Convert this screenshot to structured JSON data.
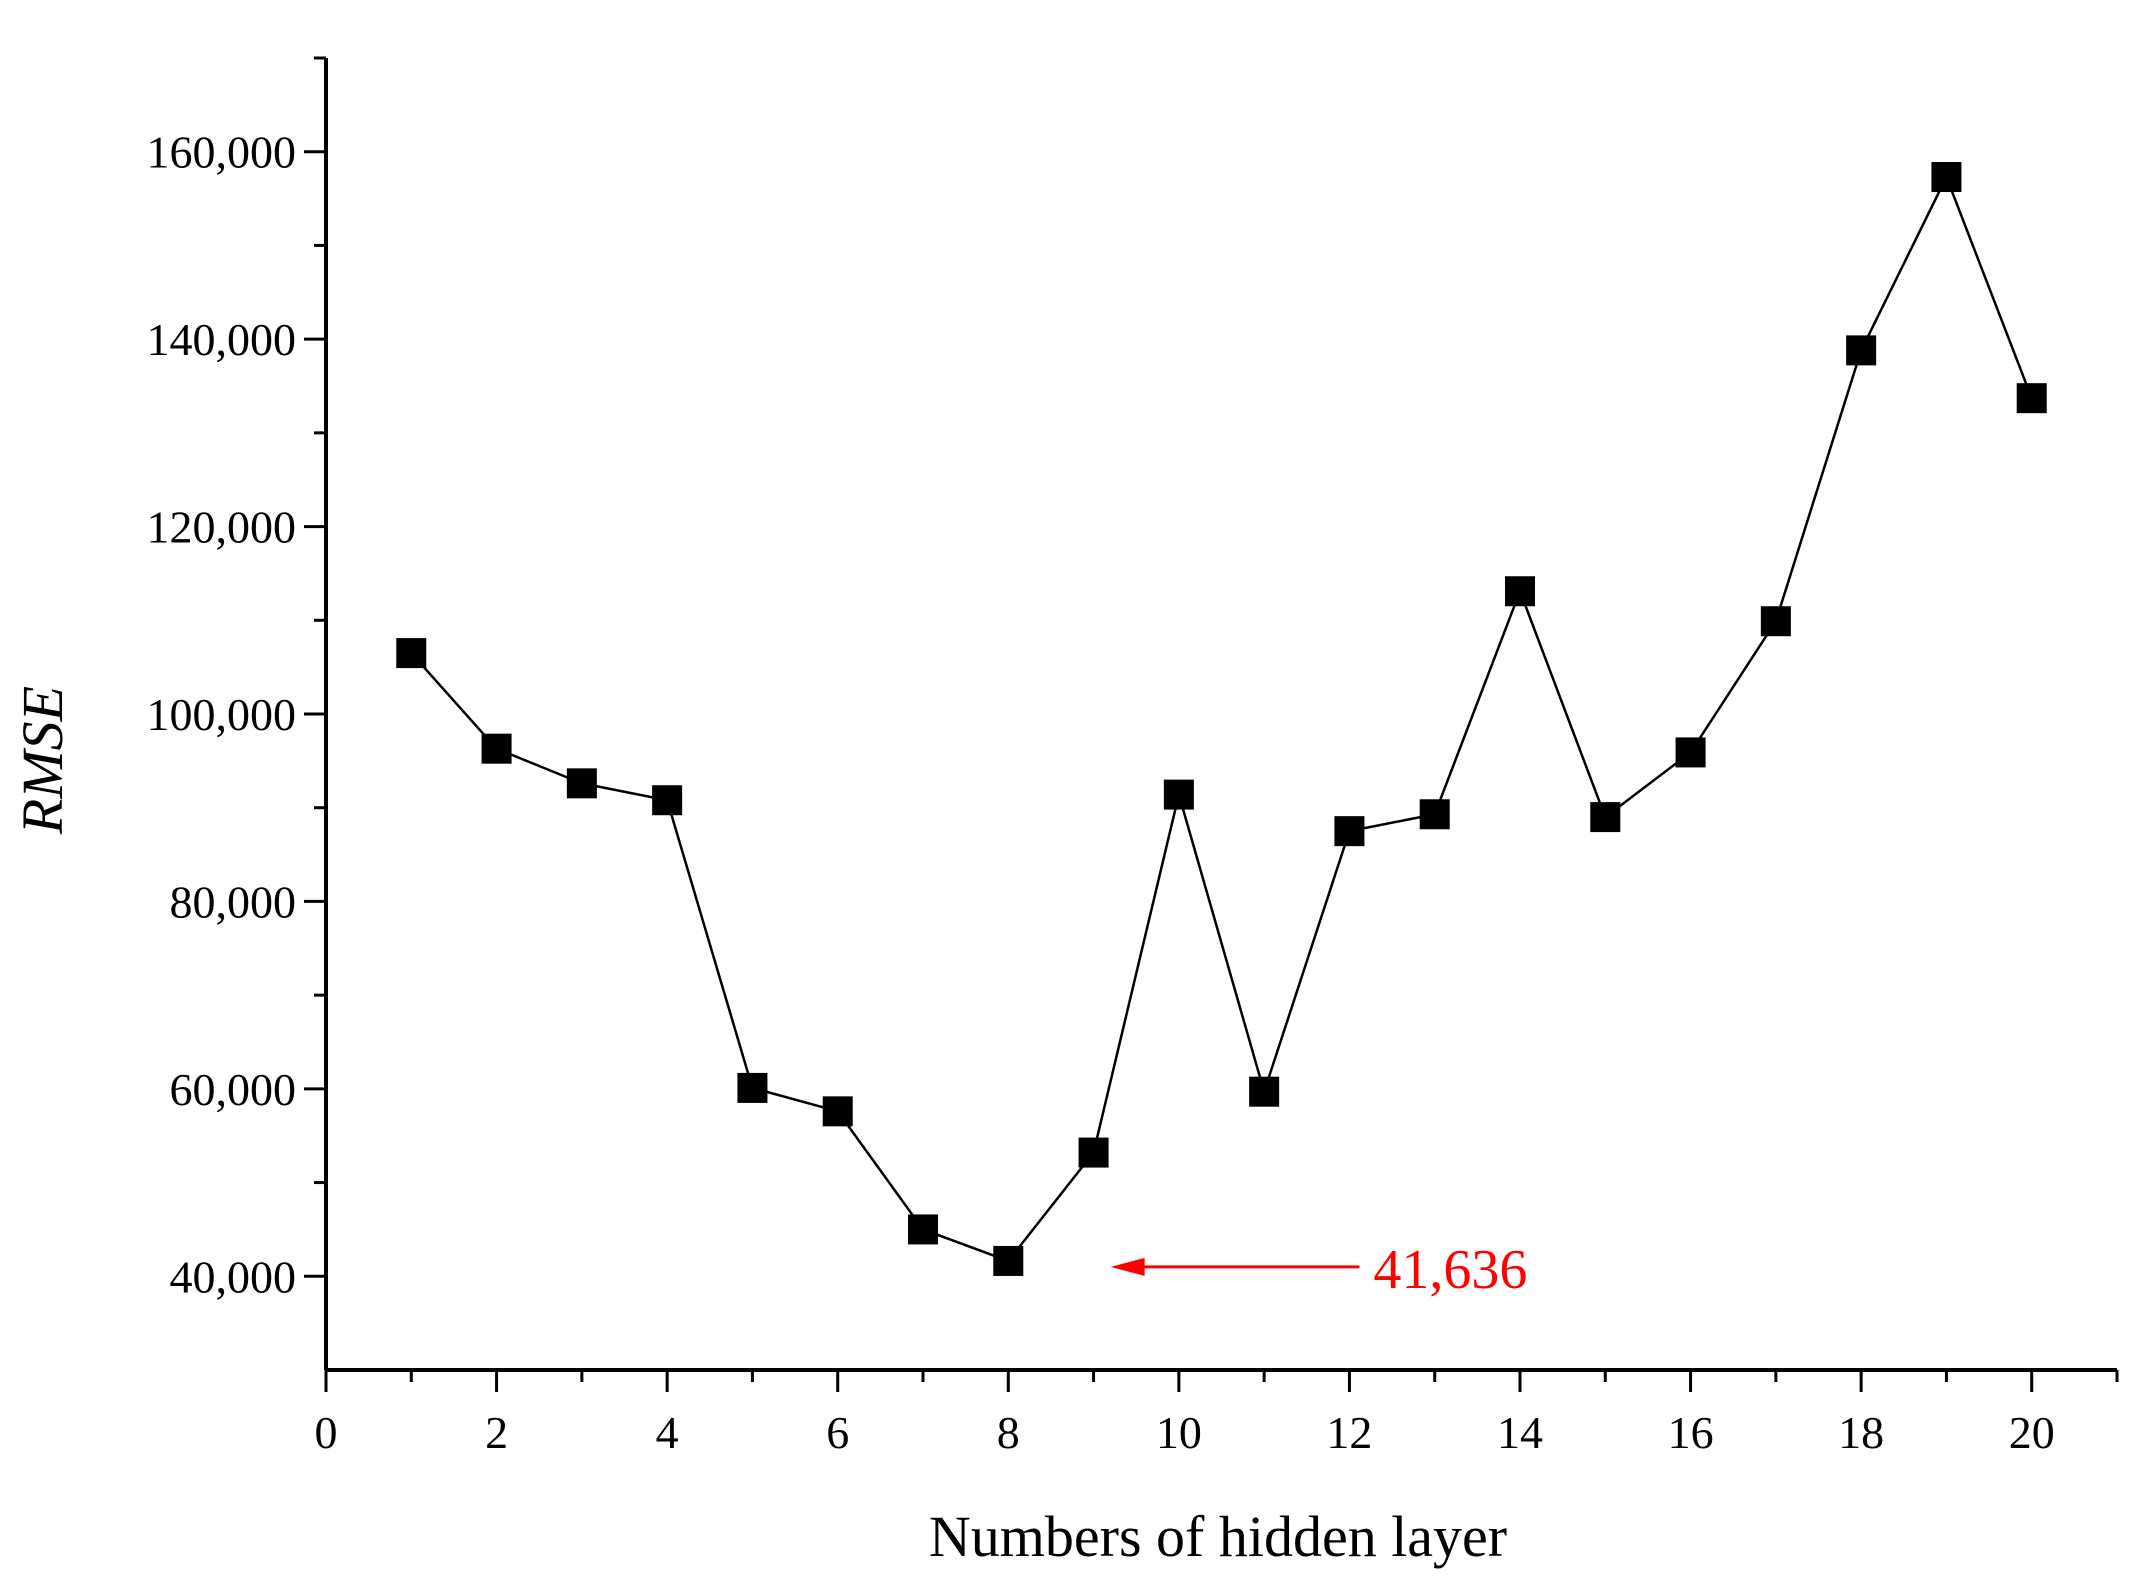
{
  "chart_data": {
    "type": "line",
    "title": "",
    "xlabel": "Numbers of hidden layer",
    "ylabel": "RMSE",
    "xlim": [
      0,
      21
    ],
    "ylim": [
      30000,
      170000
    ],
    "x_ticks": [
      0,
      2,
      4,
      6,
      8,
      10,
      12,
      14,
      16,
      18,
      20
    ],
    "x_tick_labels": [
      "0",
      "2",
      "4",
      "6",
      "8",
      "10",
      "12",
      "14",
      "16",
      "18",
      "20"
    ],
    "y_ticks": [
      40000,
      60000,
      80000,
      100000,
      120000,
      140000,
      160000
    ],
    "y_tick_labels": [
      "40,000",
      "60,000",
      "80,000",
      "100,000",
      "120,000",
      "140,000",
      "160,000"
    ],
    "grid": false,
    "marker": "square",
    "series": [
      {
        "x": [
          1,
          2,
          3,
          4,
          5,
          6,
          7,
          8,
          9,
          10,
          11,
          12,
          13,
          14,
          15,
          16,
          17,
          18,
          19,
          20
        ],
        "y": [
          106500,
          96300,
          92600,
          90800,
          60100,
          57600,
          45000,
          41636,
          53200,
          91400,
          59700,
          87500,
          89300,
          113100,
          89000,
          95900,
          109900,
          138800,
          157300,
          133700
        ],
        "color": "#000000"
      }
    ],
    "annotations": [
      {
        "text": "41,636",
        "color": "#ff0000",
        "arrow_from": [
          12,
          41000
        ],
        "arrow_to": [
          9.2,
          41000
        ]
      }
    ]
  }
}
